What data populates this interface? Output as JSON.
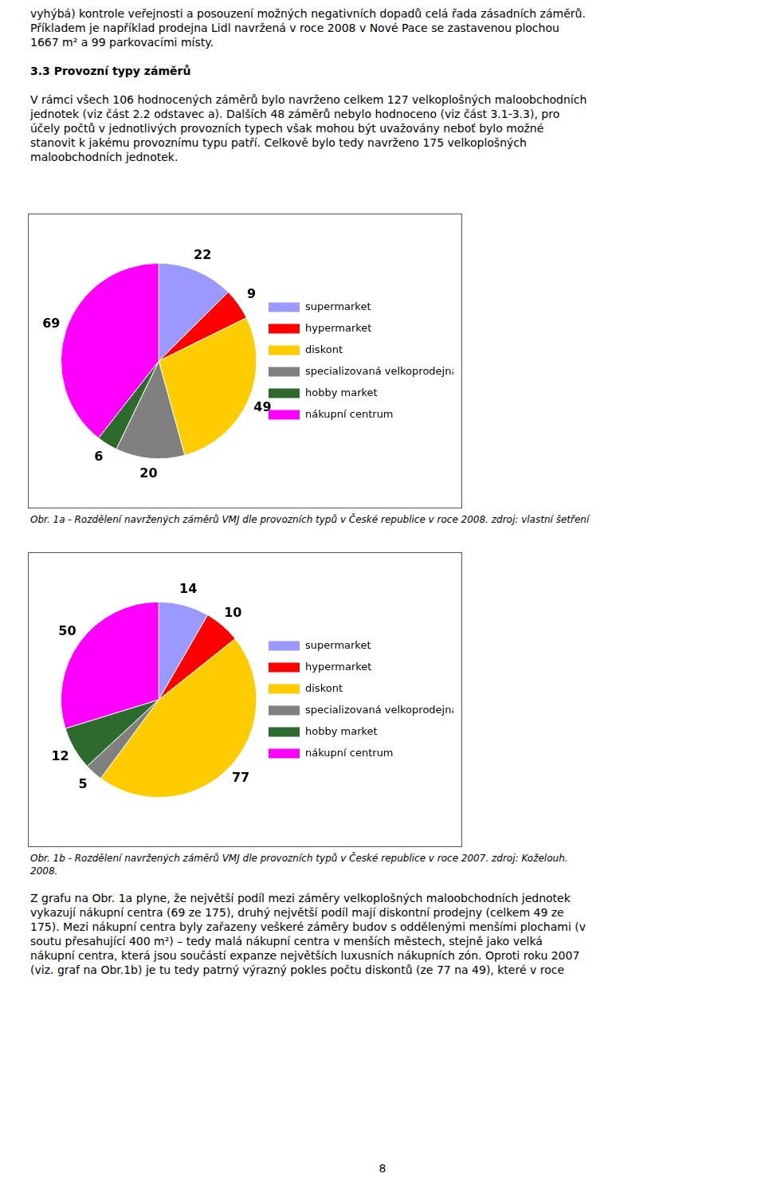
{
  "intro": [
    "vyhýbá) kontrole veřejnosti a posouzení možných negativních dopadů celá řada zásadních záměrů.",
    "Příkladem je například prodejna Lidl navržená v roce 2008 v Nové Pace se zastavenou plochou",
    "1667 m² a 99 parkovacími místy."
  ],
  "heading": "3.3 Provozní typy záměrů",
  "paragraph": [
    "V rámci všech 106 hodnocených záměrů bylo navrženo celkem 127 velkoplošných maloobchodních",
    "jednotek (viz část 2.2 odstavec a). Dalších 48 záměrů nebylo hodnoceno (viz část 3.1-3.3), pro",
    "účely počtů v jednotlivých provozních typech však mohou být uvažovány neboť bylo možné",
    "stanovit k jakému provoznímu typu patří. Celkově bylo tedy navrženo 175 velkoplošných",
    "maloobchodních jednotek."
  ],
  "chart_data": [
    {
      "type": "pie",
      "categories": [
        "supermarket",
        "hypermarket",
        "diskont",
        "specializovaná velkoprodejna",
        "hobby market",
        "nákupní centrum"
      ],
      "values": [
        22,
        9,
        49,
        20,
        6,
        69
      ],
      "colors": [
        "#9999FF",
        "#FF0000",
        "#FFCC00",
        "#808080",
        "#2D6A2D",
        "#FF00FF"
      ],
      "data_labels": true,
      "legend": "right",
      "caption": [
        "Obr. 1a - Rozdělení navržených záměrů VMJ dle provozních typů v České republice v roce 2008. zdroj: vlastní šetření"
      ]
    },
    {
      "type": "pie",
      "categories": [
        "supermarket",
        "hypermarket",
        "diskont",
        "specializovaná velkoprodejna",
        "hobby market",
        "nákupní centrum"
      ],
      "values": [
        14,
        10,
        77,
        5,
        12,
        50
      ],
      "colors": [
        "#9999FF",
        "#FF0000",
        "#FFCC00",
        "#808080",
        "#2D6A2D",
        "#FF00FF"
      ],
      "data_labels": true,
      "legend": "right",
      "caption": [
        "Obr. 1b - Rozdělení navržených záměrů VMJ dle provozních typů v České republice v roce 2007. zdroj: Koželouh.",
        "2008."
      ]
    }
  ],
  "text_below": [
    "Z grafu na Obr. 1a plyne, že největší podíl mezi záměry velkoplošných maloobchodních jednotek",
    "vykazují nákupní centra (69 ze 175), druhý největší podíl mají diskontní prodejny (celkem 49 ze",
    "175). Mezi nákupní centra byly zařazeny veškeré záměry budov s oddělenými menšími plochami (v",
    "soutu přesahující 400 m²) – tedy malá nákupní centra v menších městech, stejně jako velká",
    "nákupní centra, která jsou součástí expanze největších luxusních nákupních zón. Oproti roku 2007",
    "(viz. graf na Obr.1b) je tu tedy patrný výrazný pokles počtu diskontů (ze 77 na 49), které v roce"
  ],
  "page_number": "8"
}
